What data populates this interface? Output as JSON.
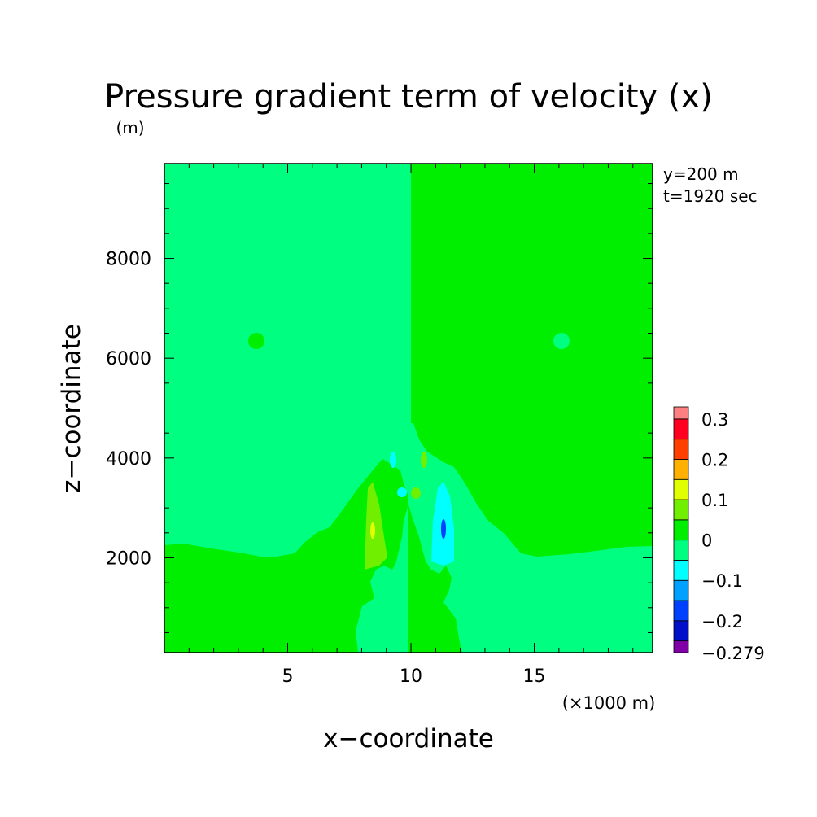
{
  "chart_data": {
    "type": "heatmap",
    "title": "Pressure gradient term of velocity (x)",
    "y_unit_label": "(m)",
    "xlabel": "x−coordinate",
    "x_unit_label": "(×1000 m)",
    "ylabel": "z−coordinate",
    "annotations": [
      "y=200 m",
      "t=1920 sec"
    ],
    "x_range": [
      0,
      19.8
    ],
    "y_range": [
      100,
      9900
    ],
    "x_ticks": [
      5,
      10,
      15
    ],
    "y_ticks": [
      2000,
      4000,
      6000,
      8000
    ],
    "x_tick_labels": [
      "5",
      "10",
      "15"
    ],
    "y_tick_labels": [
      "2000",
      "4000",
      "6000",
      "8000"
    ],
    "colorbar": {
      "levels": [
        -0.279,
        -0.25,
        -0.2,
        -0.15,
        -0.1,
        -0.05,
        0,
        0.05,
        0.1,
        0.15,
        0.2,
        0.25,
        0.3,
        0.33
      ],
      "colors": [
        "#8000a8",
        "#0010c8",
        "#0040ff",
        "#00a0ff",
        "#00ffff",
        "#00ff80",
        "#00ee00",
        "#70f000",
        "#e0ff00",
        "#ffb000",
        "#ff4000",
        "#ff0020",
        "#ff8080"
      ],
      "tick_values": [
        0.3,
        0.2,
        0.1,
        0,
        -0.1,
        -0.2,
        -0.279
      ],
      "tick_labels": [
        "0.3",
        "0.2",
        "0.1",
        "0",
        "−0.1",
        "−0.2",
        "−0.279"
      ]
    },
    "field_description": {
      "background_left_x_lt_10": -0.02,
      "background_right_x_ge_10": 0.02,
      "regions": [
        {
          "name": "lower-left layer",
          "value": 0.02,
          "x": [
            0,
            10
          ],
          "z": [
            100,
            2050
          ]
        },
        {
          "name": "lower-right layer",
          "value": -0.02,
          "x": [
            10,
            19.8
          ],
          "z": [
            100,
            2050
          ]
        },
        {
          "name": "left plume",
          "value": 0.02
        },
        {
          "name": "right plume",
          "value": -0.02
        },
        {
          "name": "left positive core",
          "value": 0.07
        },
        {
          "name": "right negative core",
          "value": -0.07
        },
        {
          "name": "left blob",
          "value": 0.02,
          "x": 3.9,
          "z": 6350
        },
        {
          "name": "right blob",
          "value": -0.02,
          "x": 16.2,
          "z": 6350
        }
      ]
    }
  }
}
